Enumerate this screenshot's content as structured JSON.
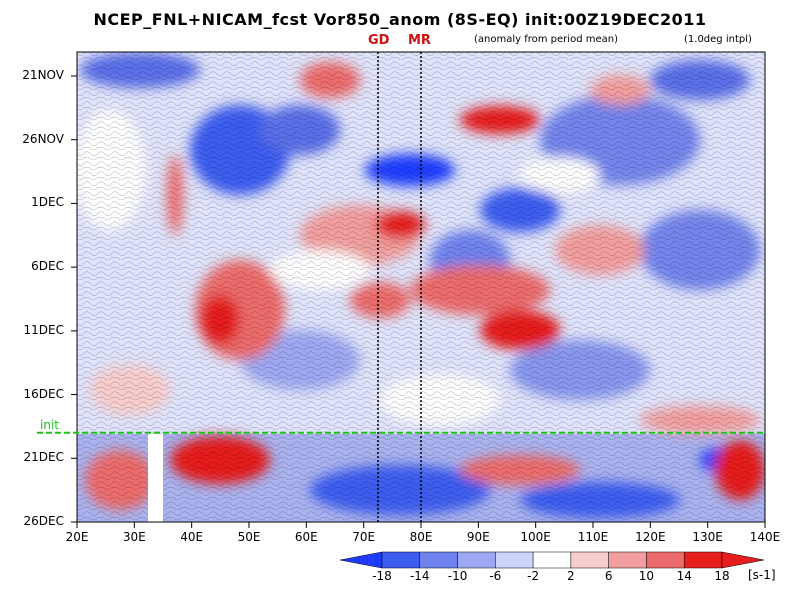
{
  "chart_data": {
    "type": "heatmap",
    "title": "NCEP_FNL+NICAM_fcst Vor850_anom (8S-EQ) init:00Z19DEC2011",
    "subtitle_left": "(anomaly from period mean)",
    "subtitle_right": "(1.0deg intpl)",
    "x_axis": {
      "ticks": [
        "20E",
        "30E",
        "40E",
        "50E",
        "60E",
        "70E",
        "80E",
        "90E",
        "100E",
        "110E",
        "120E",
        "130E",
        "140E"
      ],
      "range": [
        20,
        140
      ]
    },
    "y_axis": {
      "ticks": [
        "21NOV",
        "26NOV",
        "1DEC",
        "6DEC",
        "11DEC",
        "16DEC",
        "21DEC",
        "26DEC"
      ],
      "direction": "time increases downward"
    },
    "init_label": "init",
    "init_date": "19DEC",
    "markers": [
      {
        "label": "GD",
        "longitude": 72.5
      },
      {
        "label": "MR",
        "longitude": 80
      }
    ],
    "colorbar": {
      "levels": [
        "-18",
        "-14",
        "-10",
        "-6",
        "-2",
        "2",
        "6",
        "10",
        "14",
        "18"
      ],
      "colors": [
        "#1e3cff",
        "#3d5df0",
        "#6f82ee",
        "#9da8f2",
        "#cdd3f8",
        "#ffffff",
        "#f8cccc",
        "#f29e9e",
        "#ec6c6c",
        "#e61e1e",
        "#e61e1e"
      ],
      "unit": "[s-1]"
    }
  },
  "colors": {
    "init_line": "#18c418",
    "marker_text": "#d01010"
  }
}
